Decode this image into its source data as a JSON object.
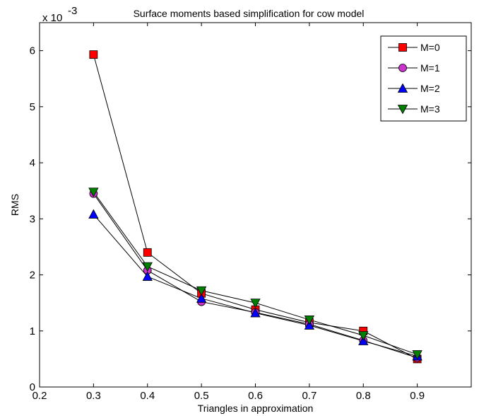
{
  "chart_data": {
    "type": "line",
    "title": "Surface moments based simplification for cow model",
    "xlabel": "Triangles in approximation",
    "ylabel": "RMS",
    "y_multiplier_label": "x 10",
    "y_multiplier_exponent": "-3",
    "xlim": [
      0.2,
      1.0
    ],
    "ylim": [
      0,
      6.5
    ],
    "xticks": [
      0.2,
      0.3,
      0.4,
      0.5,
      0.6,
      0.7,
      0.8,
      0.9
    ],
    "xtick_labels": [
      "0.2",
      "0.3",
      "0.4",
      "0.5",
      "0.6",
      "0.7",
      "0.8",
      "0.9"
    ],
    "yticks": [
      0,
      1,
      2,
      3,
      4,
      5,
      6
    ],
    "ytick_labels": [
      "0",
      "1",
      "2",
      "3",
      "4",
      "5",
      "6"
    ],
    "grid": false,
    "legend_position": "top-right",
    "x": [
      0.3,
      0.4,
      0.5,
      0.6,
      0.7,
      0.8,
      0.9
    ],
    "series": [
      {
        "name": "M=0",
        "marker": "square",
        "color": "#ff0000",
        "values": [
          5.93,
          2.4,
          1.67,
          1.38,
          1.15,
          1.0,
          0.5
        ]
      },
      {
        "name": "M=1",
        "marker": "circle",
        "color": "#cc33cc",
        "values": [
          3.45,
          2.08,
          1.52,
          1.33,
          1.12,
          0.83,
          0.52
        ]
      },
      {
        "name": "M=2",
        "marker": "triangle-up",
        "color": "#0000ff",
        "values": [
          3.08,
          1.97,
          1.58,
          1.32,
          1.1,
          0.82,
          0.55
        ]
      },
      {
        "name": "M=3",
        "marker": "triangle-down",
        "color": "#008000",
        "values": [
          3.48,
          2.15,
          1.72,
          1.5,
          1.2,
          0.92,
          0.58
        ]
      }
    ]
  }
}
